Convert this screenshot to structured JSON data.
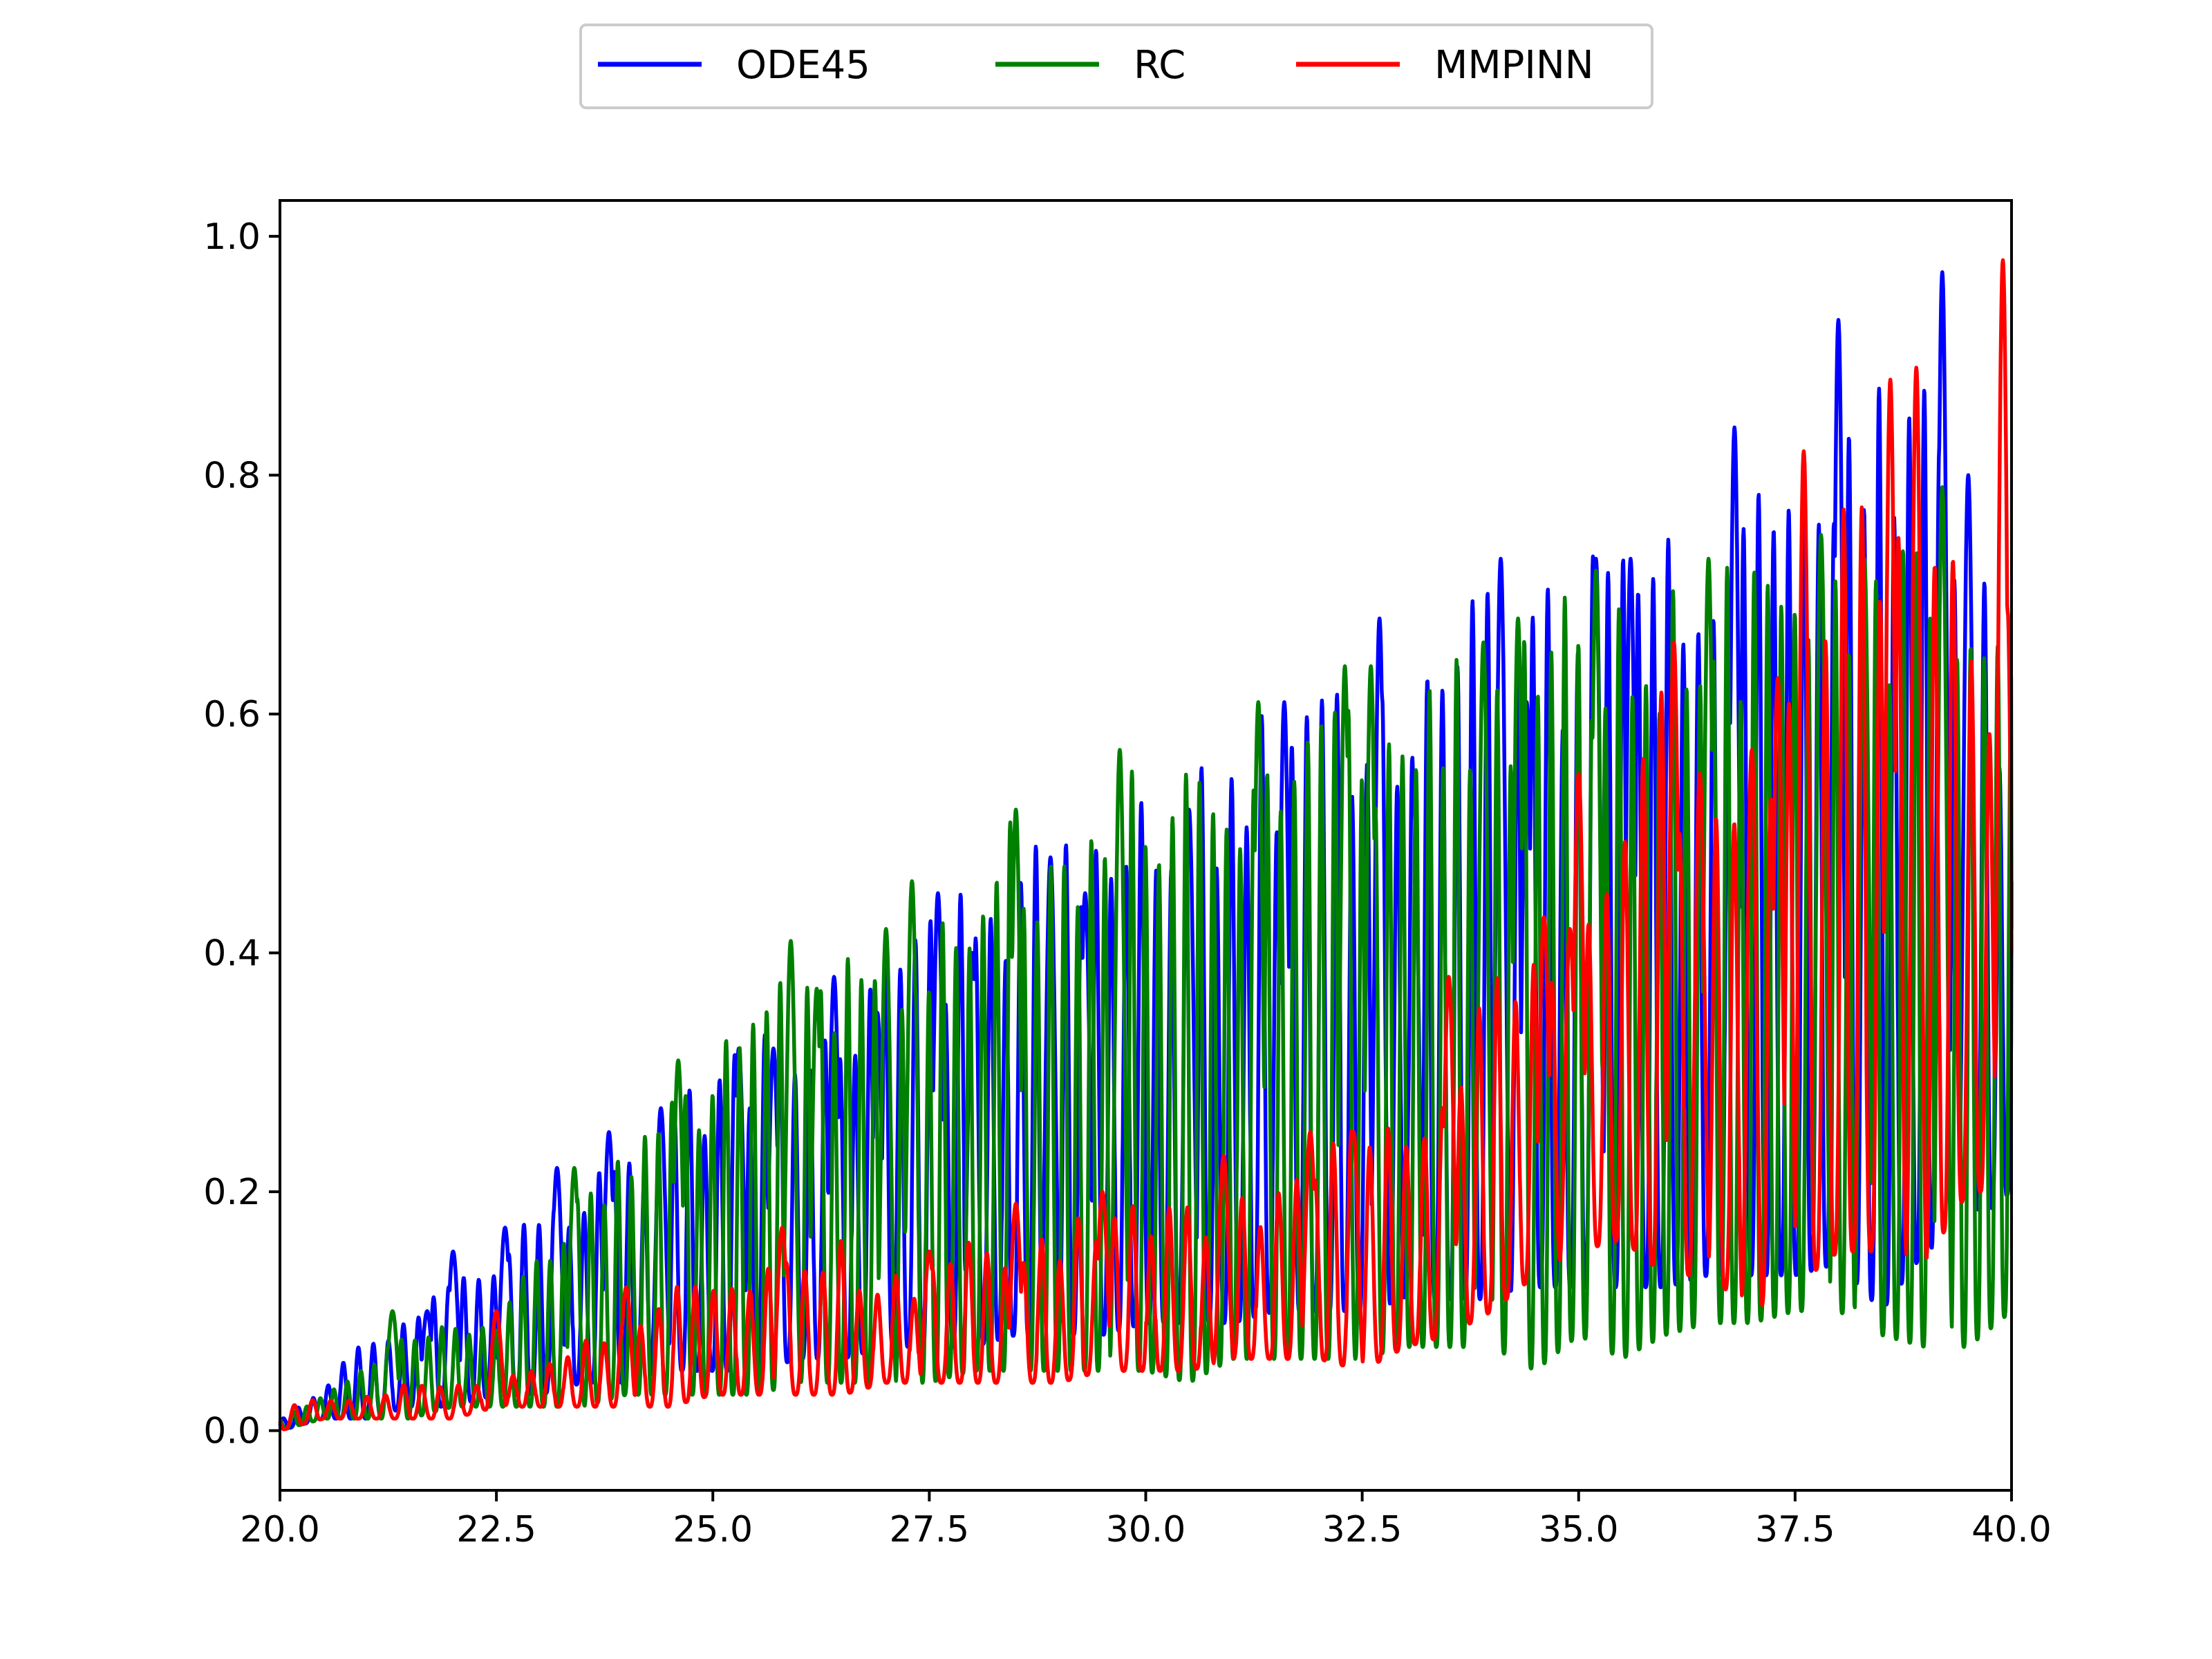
{
  "chart_data": {
    "type": "line",
    "title": "",
    "xlabel": "",
    "ylabel": "",
    "xlim": [
      20.0,
      40.0
    ],
    "ylim": [
      -0.05,
      1.03
    ],
    "x_ticks": [
      20.0,
      22.5,
      25.0,
      27.5,
      30.0,
      32.5,
      35.0,
      37.5,
      40.0
    ],
    "x_tick_labels": [
      "20.0",
      "22.5",
      "25.0",
      "27.5",
      "30.0",
      "32.5",
      "35.0",
      "37.5",
      "40.0"
    ],
    "y_ticks": [
      0.0,
      0.2,
      0.4,
      0.6,
      0.8,
      1.0
    ],
    "y_tick_labels": [
      "0.0",
      "0.2",
      "0.4",
      "0.6",
      "0.8",
      "1.0"
    ],
    "grid": false,
    "legend": {
      "placement": "top-center, above plot",
      "columns": 3
    },
    "series": [
      {
        "name": "ODE45",
        "color": "#0000ff",
        "x": [
          20.0,
          20.5,
          21.0,
          21.5,
          22.0,
          22.5,
          23.0,
          23.5,
          24.0,
          24.5,
          25.0,
          25.5,
          26.0,
          26.5,
          27.0,
          27.5,
          28.0,
          28.5,
          29.0,
          29.5,
          30.0,
          30.5,
          31.0,
          31.5,
          32.0,
          32.5,
          33.0,
          33.5,
          34.0,
          34.5,
          35.0,
          35.5,
          36.0,
          36.5,
          37.0,
          37.5,
          38.0,
          38.5,
          39.0,
          39.5,
          40.0
        ],
        "upper": [
          0.01,
          0.04,
          0.08,
          0.1,
          0.14,
          0.16,
          0.19,
          0.21,
          0.24,
          0.27,
          0.31,
          0.33,
          0.35,
          0.37,
          0.41,
          0.43,
          0.46,
          0.48,
          0.5,
          0.52,
          0.56,
          0.56,
          0.58,
          0.61,
          0.62,
          0.64,
          0.66,
          0.68,
          0.71,
          0.71,
          0.73,
          0.74,
          0.76,
          0.78,
          0.8,
          0.82,
          0.9,
          0.88,
          0.97,
          0.82,
          0.6
        ],
        "lower": [
          0.0,
          0.01,
          0.01,
          0.02,
          0.02,
          0.03,
          0.03,
          0.04,
          0.04,
          0.05,
          0.05,
          0.05,
          0.06,
          0.06,
          0.07,
          0.07,
          0.07,
          0.08,
          0.08,
          0.08,
          0.09,
          0.09,
          0.09,
          0.1,
          0.1,
          0.1,
          0.11,
          0.11,
          0.11,
          0.12,
          0.12,
          0.12,
          0.12,
          0.13,
          0.13,
          0.13,
          0.14,
          0.1,
          0.15,
          0.17,
          0.2
        ],
        "peaks": [
          [
            21.7,
            0.1
          ],
          [
            22.0,
            0.15
          ],
          [
            22.6,
            0.17
          ],
          [
            23.2,
            0.22
          ],
          [
            23.8,
            0.25
          ],
          [
            24.4,
            0.27
          ],
          [
            25.3,
            0.32
          ],
          [
            25.7,
            0.32
          ],
          [
            26.4,
            0.38
          ],
          [
            26.9,
            0.35
          ],
          [
            27.6,
            0.45
          ],
          [
            28.0,
            0.4
          ],
          [
            28.9,
            0.48
          ],
          [
            29.3,
            0.45
          ],
          [
            30.5,
            0.52
          ],
          [
            31.6,
            0.61
          ],
          [
            32.7,
            0.68
          ],
          [
            33.1,
            0.52
          ],
          [
            34.1,
            0.73
          ],
          [
            34.4,
            0.61
          ],
          [
            35.2,
            0.73
          ],
          [
            35.6,
            0.73
          ],
          [
            36.8,
            0.84
          ],
          [
            38.0,
            0.93
          ],
          [
            39.2,
            0.97
          ],
          [
            39.5,
            0.8
          ]
        ],
        "trend_end": 0.46,
        "cycles": 115,
        "phase": 0.3,
        "jitter": 0.23
      },
      {
        "name": "RC",
        "color": "#008000",
        "x": [
          20.0,
          20.5,
          21.0,
          21.5,
          22.0,
          22.5,
          23.0,
          23.5,
          24.0,
          24.5,
          25.0,
          25.5,
          26.0,
          26.5,
          27.0,
          27.5,
          28.0,
          28.5,
          29.0,
          29.5,
          30.0,
          30.5,
          31.0,
          31.5,
          32.0,
          32.5,
          33.0,
          33.5,
          34.0,
          34.5,
          35.0,
          35.5,
          36.0,
          36.5,
          37.0,
          37.5,
          38.0,
          38.5,
          39.0,
          39.5,
          40.0
        ],
        "upper": [
          0.01,
          0.03,
          0.06,
          0.09,
          0.09,
          0.1,
          0.15,
          0.21,
          0.23,
          0.29,
          0.31,
          0.37,
          0.39,
          0.4,
          0.42,
          0.44,
          0.47,
          0.52,
          0.52,
          0.55,
          0.57,
          0.57,
          0.59,
          0.6,
          0.61,
          0.63,
          0.64,
          0.65,
          0.66,
          0.69,
          0.71,
          0.72,
          0.72,
          0.73,
          0.73,
          0.73,
          0.73,
          0.74,
          0.79,
          0.75,
          0.65
        ],
        "lower": [
          0.0,
          0.01,
          0.01,
          0.01,
          0.02,
          0.02,
          0.02,
          0.02,
          0.03,
          0.03,
          0.03,
          0.03,
          0.04,
          0.04,
          0.04,
          0.04,
          0.05,
          0.05,
          0.05,
          0.05,
          0.05,
          0.04,
          0.06,
          0.06,
          0.06,
          0.06,
          0.07,
          0.07,
          0.07,
          0.05,
          0.08,
          0.06,
          0.08,
          0.09,
          0.09,
          0.1,
          0.1,
          0.08,
          0.07,
          0.07,
          0.1
        ],
        "peaks": [
          [
            21.3,
            0.1
          ],
          [
            23.4,
            0.22
          ],
          [
            24.6,
            0.31
          ],
          [
            25.9,
            0.41
          ],
          [
            26.2,
            0.37
          ],
          [
            27.0,
            0.42
          ],
          [
            27.3,
            0.46
          ],
          [
            28.5,
            0.52
          ],
          [
            29.7,
            0.57
          ],
          [
            31.3,
            0.61
          ],
          [
            32.3,
            0.64
          ],
          [
            32.6,
            0.64
          ],
          [
            33.9,
            0.66
          ],
          [
            34.3,
            0.68
          ],
          [
            35.2,
            0.72
          ],
          [
            36.5,
            0.73
          ],
          [
            37.8,
            0.75
          ],
          [
            38.3,
            0.73
          ],
          [
            39.2,
            0.79
          ]
        ],
        "trend_end": 0.42,
        "cycles": 128,
        "phase": 1.7,
        "jitter": 0.2
      },
      {
        "name": "MMPINN",
        "color": "#ff0000",
        "x": [
          20.0,
          20.5,
          21.0,
          21.5,
          22.0,
          22.5,
          23.0,
          23.5,
          24.0,
          24.5,
          25.0,
          25.5,
          26.0,
          26.5,
          27.0,
          27.5,
          28.0,
          28.5,
          29.0,
          29.5,
          30.0,
          30.5,
          31.0,
          31.5,
          32.0,
          32.5,
          33.0,
          33.5,
          34.0,
          34.5,
          35.0,
          35.5,
          36.0,
          36.5,
          37.0,
          37.5,
          38.0,
          38.5,
          39.0,
          39.5,
          40.0
        ],
        "upper": [
          0.02,
          0.03,
          0.03,
          0.04,
          0.04,
          0.05,
          0.06,
          0.08,
          0.1,
          0.12,
          0.14,
          0.15,
          0.14,
          0.16,
          0.13,
          0.14,
          0.16,
          0.15,
          0.17,
          0.19,
          0.2,
          0.2,
          0.2,
          0.2,
          0.25,
          0.26,
          0.28,
          0.33,
          0.38,
          0.4,
          0.43,
          0.55,
          0.66,
          0.55,
          0.57,
          0.63,
          0.78,
          0.8,
          0.88,
          0.7,
          0.75
        ],
        "lower": [
          0.0,
          0.01,
          0.01,
          0.01,
          0.01,
          0.02,
          0.02,
          0.02,
          0.02,
          0.02,
          0.03,
          0.03,
          0.03,
          0.03,
          0.04,
          0.04,
          0.04,
          0.04,
          0.04,
          0.05,
          0.05,
          0.05,
          0.06,
          0.06,
          0.06,
          0.05,
          0.07,
          0.08,
          0.1,
          0.13,
          0.15,
          0.16,
          0.13,
          0.13,
          0.1,
          0.12,
          0.15,
          0.15,
          0.14,
          0.2,
          0.2
        ],
        "peaks": [
          [
            22.5,
            0.1
          ],
          [
            24.0,
            0.12
          ],
          [
            25.8,
            0.17
          ],
          [
            27.5,
            0.15
          ],
          [
            28.5,
            0.19
          ],
          [
            29.5,
            0.2
          ],
          [
            30.9,
            0.23
          ],
          [
            31.9,
            0.25
          ],
          [
            32.4,
            0.25
          ],
          [
            33.5,
            0.38
          ],
          [
            34.6,
            0.43
          ],
          [
            34.9,
            0.42
          ],
          [
            35.0,
            0.55
          ],
          [
            36.1,
            0.66
          ],
          [
            36.4,
            0.55
          ],
          [
            37.0,
            0.57
          ],
          [
            37.3,
            0.63
          ],
          [
            37.6,
            0.82
          ],
          [
            38.6,
            0.88
          ],
          [
            38.9,
            0.89
          ],
          [
            39.9,
            0.98
          ]
        ],
        "trend_end": 0.4,
        "cycles": 95,
        "phase": 2.9,
        "jitter": 0.27
      }
    ]
  }
}
